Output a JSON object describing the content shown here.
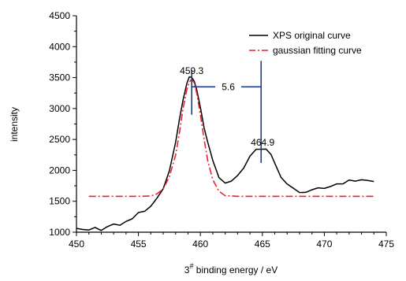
{
  "chart_data": {
    "type": "line",
    "xlabel_base": "3",
    "xlabel_sup": "#",
    "xlabel_rest": " binding energy / eV",
    "ylabel": "intensity",
    "xlim": [
      450,
      475
    ],
    "ylim": [
      1000,
      4500
    ],
    "xticks": [
      450,
      455,
      460,
      465,
      470,
      475
    ],
    "yticks": [
      1000,
      1500,
      2000,
      2500,
      3000,
      3500,
      4000,
      4500
    ],
    "grid": false,
    "legend_position": "top-right",
    "series": [
      {
        "name": "XPS original curve",
        "color": "#000000",
        "style": "solid",
        "x": [
          450,
          450.5,
          451,
          451.5,
          452,
          452.5,
          453,
          453.5,
          454,
          454.5,
          455,
          455.5,
          456,
          456.5,
          457,
          457.5,
          458,
          458.3,
          458.6,
          458.9,
          459.1,
          459.3,
          459.5,
          459.7,
          460,
          460.3,
          460.6,
          461,
          461.5,
          462,
          462.5,
          463,
          463.5,
          464,
          464.5,
          464.9,
          465.3,
          465.7,
          466,
          466.5,
          467,
          467.5,
          468,
          468.5,
          469,
          469.5,
          470,
          470.5,
          471,
          471.5,
          472,
          472.5,
          473,
          473.5,
          474
        ],
        "y": [
          1080,
          1050,
          1030,
          1060,
          1040,
          1090,
          1120,
          1130,
          1180,
          1210,
          1300,
          1350,
          1420,
          1540,
          1720,
          2000,
          2450,
          2800,
          3150,
          3400,
          3500,
          3520,
          3450,
          3300,
          3000,
          2700,
          2450,
          2150,
          1900,
          1800,
          1820,
          1900,
          2050,
          2230,
          2330,
          2360,
          2350,
          2250,
          2100,
          1900,
          1780,
          1700,
          1660,
          1650,
          1680,
          1700,
          1720,
          1740,
          1770,
          1800,
          1850,
          1820,
          1830,
          1850,
          1820
        ]
      },
      {
        "name": "gaussian fitting curve",
        "color": "#e8232a",
        "style": "dash-dot",
        "x": [
          451,
          452,
          453,
          454,
          455,
          456,
          456.5,
          457,
          457.5,
          458,
          458.3,
          458.6,
          458.9,
          459.1,
          459.3,
          459.5,
          459.7,
          460,
          460.3,
          460.6,
          461,
          461.5,
          462,
          463,
          464,
          466,
          468,
          470,
          472,
          474
        ],
        "y": [
          1580,
          1580,
          1580,
          1580,
          1580,
          1585,
          1620,
          1700,
          1900,
          2250,
          2600,
          3000,
          3300,
          3430,
          3470,
          3420,
          3250,
          2900,
          2500,
          2150,
          1850,
          1660,
          1590,
          1580,
          1580,
          1580,
          1580,
          1580,
          1580,
          1580
        ]
      }
    ],
    "annotations": {
      "peak1_label": "459.3",
      "peak1_x": 459.3,
      "peak2_label": "464.9",
      "peak2_x": 464.9,
      "delta_label": "5.6",
      "delta_y": 3350,
      "marker_y_low": 2900,
      "marker_y_high": 3770,
      "peak1_label_y": 3560,
      "peak2_label_y": 2400,
      "marker_color": "#1d3f8a"
    }
  }
}
